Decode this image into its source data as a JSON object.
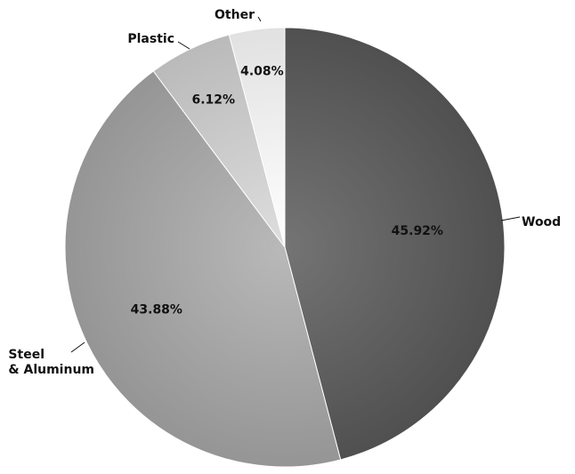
{
  "chart_data": {
    "type": "pie",
    "categories": [
      "Wood",
      "Steel & Aluminum",
      "Plastic",
      "Other"
    ],
    "values": [
      45.92,
      43.88,
      6.12,
      4.08
    ],
    "value_labels": [
      "45.92%",
      "43.88%",
      "6.12%",
      "4.08%"
    ],
    "category_labels": [
      [
        "Wood"
      ],
      [
        "Steel",
        "& Aluminum"
      ],
      [
        "Plastic"
      ],
      [
        "Other"
      ]
    ],
    "start_angle": "top (12 o'clock), clockwise",
    "colors": [
      "#5e5e5e",
      "#a3a3a3",
      "#c8c8c8",
      "#efefef"
    ],
    "legend": "none (category labels with leader lines)"
  }
}
